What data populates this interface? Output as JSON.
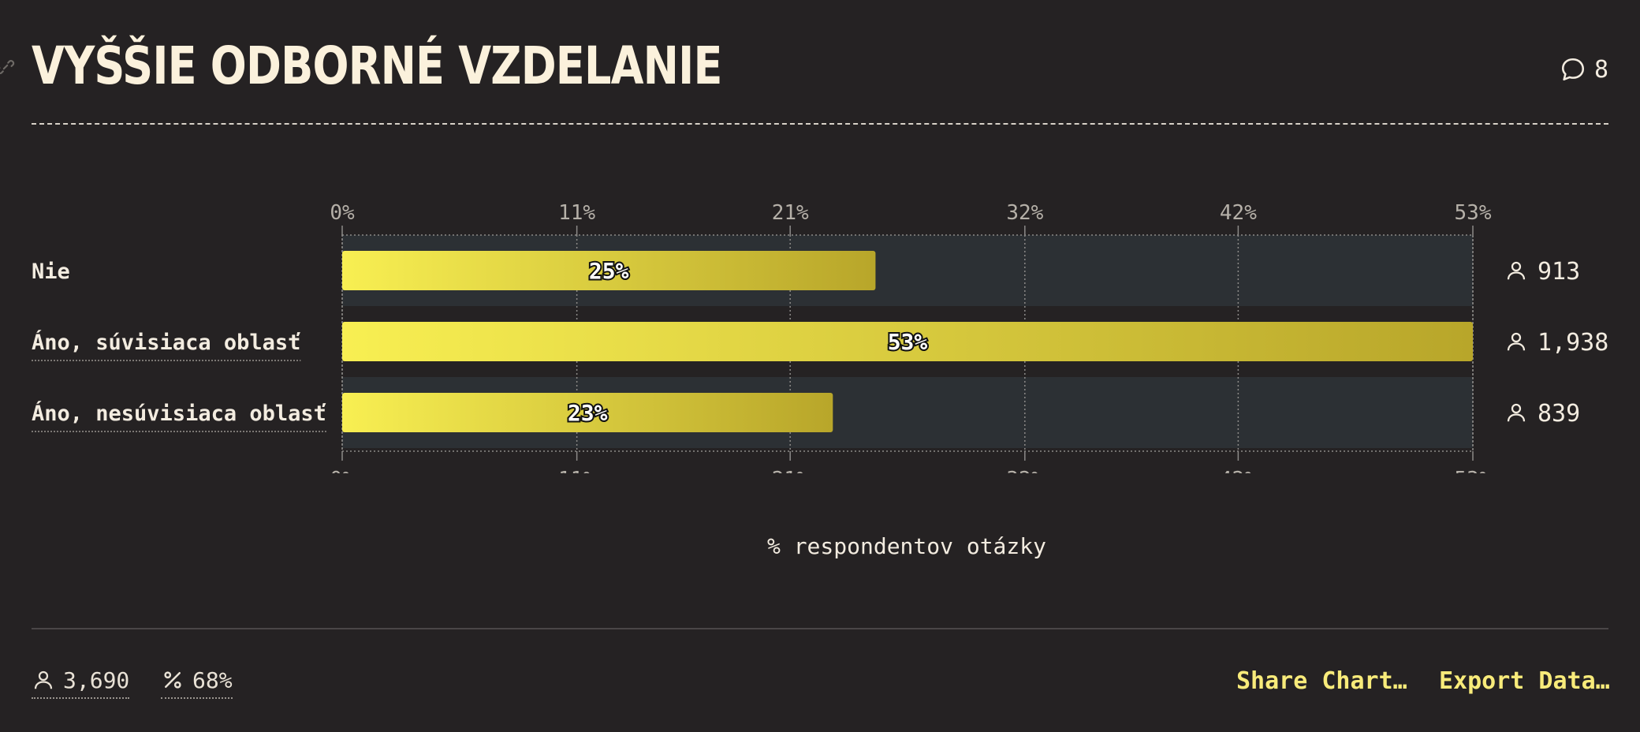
{
  "header": {
    "title": "VYŠŠIE ODBORNÉ VZDELANIE",
    "comment_count": "8"
  },
  "chart_data": {
    "type": "bar",
    "orientation": "horizontal",
    "categories": [
      "Nie",
      "Áno, súvisiaca oblasť",
      "Áno, nesúvisiaca oblasť"
    ],
    "values": [
      25,
      53,
      23
    ],
    "value_labels": [
      "25%",
      "53%",
      "23%"
    ],
    "counts": [
      "913",
      "1,938",
      "839"
    ],
    "xlabel": "% respondentov otázky",
    "xlim": [
      0,
      53
    ],
    "ticks": [
      0,
      11,
      21,
      32,
      42,
      53
    ],
    "tick_labels": [
      "0%",
      "11%",
      "21%",
      "32%",
      "42%",
      "53%"
    ],
    "grid": true,
    "bar_color_start": "#f8ef52",
    "bar_color_end": "#b8a62a"
  },
  "footer": {
    "respondents": "3,690",
    "response_rate": "68%",
    "share_label": "Share Chart…",
    "export_label": "Export Data…"
  },
  "colors": {
    "background": "#252223",
    "track": "#2c3034",
    "accent": "#f8eb7a"
  }
}
